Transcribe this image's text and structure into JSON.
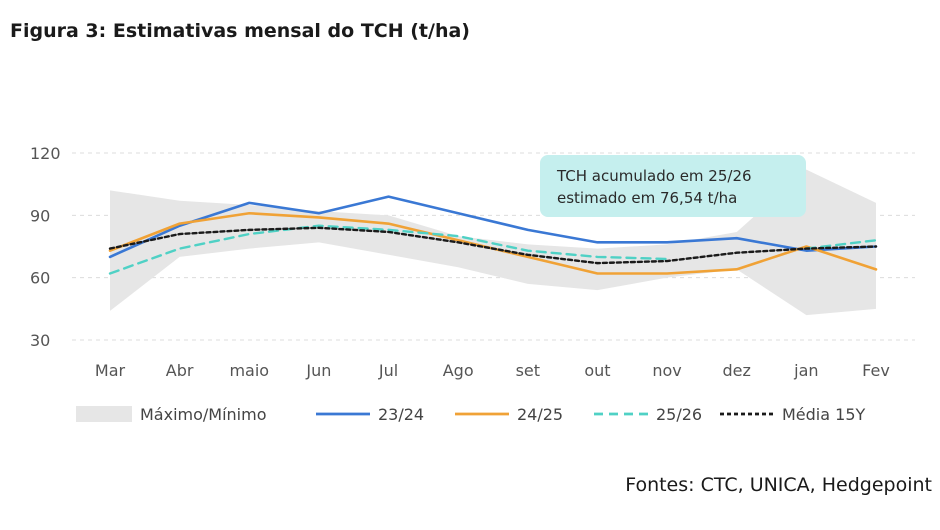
{
  "title": "Figura 3: Estimativas mensal do TCH (t/ha)",
  "source": "Fontes: CTC, UNICA, Hedgepoint",
  "chart_data": {
    "type": "line",
    "title": "Figura 3: Estimativas mensal do TCH (t/ha)",
    "categories": [
      "Mar",
      "Abr",
      "maio",
      "Jun",
      "Jul",
      "Ago",
      "set",
      "out",
      "nov",
      "dez",
      "jan",
      "Fev"
    ],
    "ylim": [
      30,
      120
    ],
    "yticks": [
      30,
      60,
      90,
      120
    ],
    "grid": true,
    "legend_position": "bottom",
    "range": {
      "name": "Máximo/Mínimo",
      "color": "#e6e6e6",
      "max": [
        102,
        97,
        95,
        92,
        90,
        80,
        76,
        74,
        76,
        82,
        112,
        96
      ],
      "min": [
        44,
        70,
        74,
        77,
        71,
        65,
        57,
        54,
        60,
        64,
        42,
        45
      ]
    },
    "series": [
      {
        "name": "23/24",
        "color": "#3a78d4",
        "dash": "solid",
        "values": [
          70,
          85,
          96,
          91,
          99,
          91,
          83,
          77,
          77,
          79,
          73,
          75
        ]
      },
      {
        "name": "24/25",
        "color": "#f0a236",
        "dash": "solid",
        "values": [
          73,
          86,
          91,
          89,
          86,
          78,
          70,
          62,
          62,
          64,
          75,
          64
        ]
      },
      {
        "name": "25/26",
        "color": "#4fd1c5",
        "dash": "dashed",
        "values": [
          62,
          74,
          81,
          85,
          83,
          80,
          73,
          70,
          69,
          null,
          74,
          78
        ]
      },
      {
        "name": "Média 15Y",
        "color": "#1a1a1a",
        "dash": "dotted",
        "values": [
          74,
          81,
          83,
          84,
          82,
          77,
          71,
          67,
          68,
          72,
          74,
          75
        ]
      }
    ],
    "annotation": {
      "lines": [
        "TCH acumulado em 25/26",
        "estimado em 76,54 t/ha"
      ],
      "color": "#c5efee"
    }
  }
}
